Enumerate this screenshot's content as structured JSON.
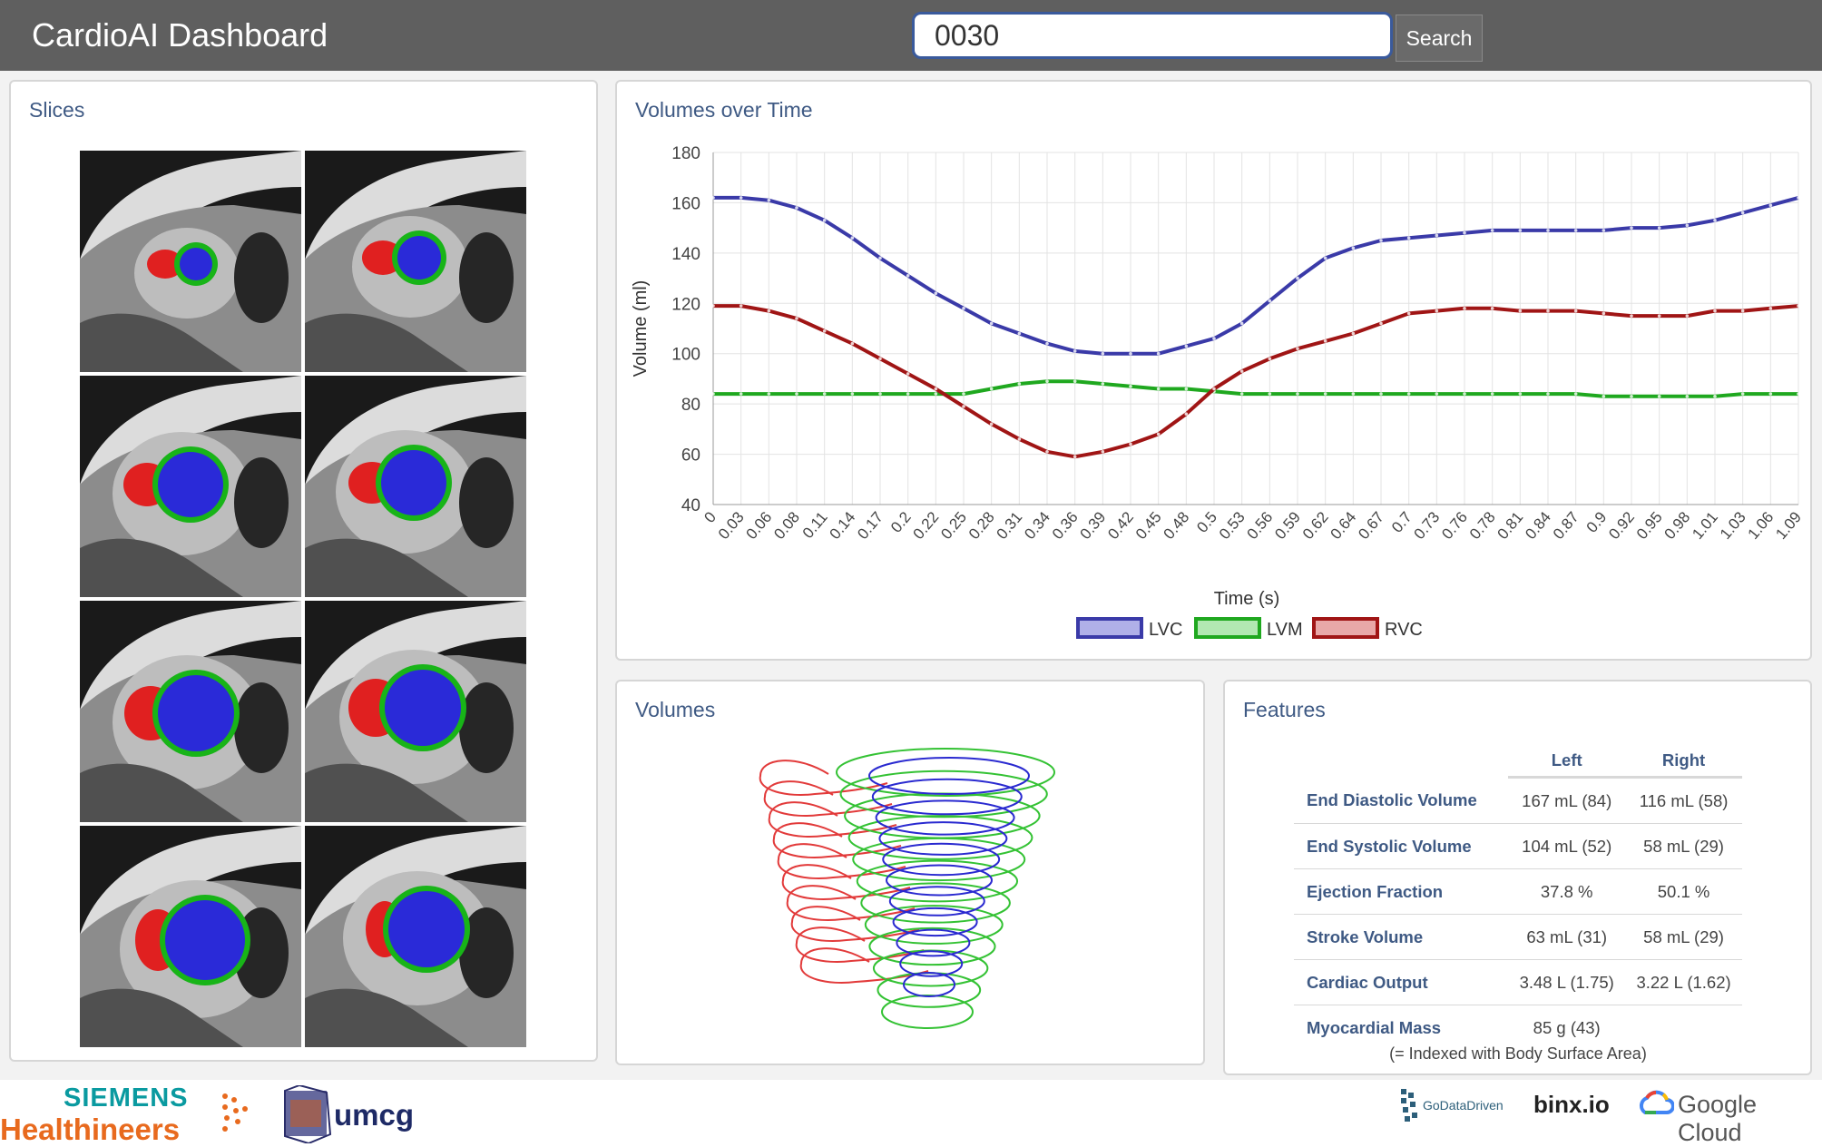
{
  "header": {
    "title": "CardioAI Dashboard",
    "search_value": "0030",
    "search_button": "Search"
  },
  "panels": {
    "slices_title": "Slices",
    "volumes_time_title": "Volumes over Time",
    "volumes_title": "Volumes",
    "features_title": "Features"
  },
  "colors": {
    "lvc": "#3a3aa8",
    "lvm": "#1fa81f",
    "rvc": "#a01515",
    "rvc_3d": "#e23a3a",
    "lvm_3d": "#34c234",
    "lvc_3d": "#2a2ad0",
    "title_blue": "#3f5a84"
  },
  "chart_data": {
    "type": "line",
    "xlabel": "Time (s)",
    "ylabel": "Volume (ml)",
    "ylim": [
      40,
      180
    ],
    "yticks": [
      40,
      60,
      80,
      100,
      120,
      140,
      160,
      180
    ],
    "grid": true,
    "legend_position": "bottom-center",
    "x": [
      0,
      0.03,
      0.06,
      0.08,
      0.11,
      0.14,
      0.17,
      0.2,
      0.22,
      0.25,
      0.28,
      0.31,
      0.34,
      0.36,
      0.39,
      0.42,
      0.45,
      0.48,
      0.5,
      0.53,
      0.56,
      0.59,
      0.62,
      0.64,
      0.67,
      0.7,
      0.73,
      0.76,
      0.78,
      0.81,
      0.84,
      0.87,
      0.9,
      0.92,
      0.95,
      0.98,
      1.01,
      1.03,
      1.06,
      1.09
    ],
    "series": [
      {
        "name": "LVC",
        "values": [
          162,
          162,
          161,
          158,
          153,
          146,
          138,
          131,
          124,
          118,
          112,
          108,
          104,
          101,
          100,
          100,
          100,
          103,
          106,
          112,
          121,
          130,
          138,
          142,
          145,
          146,
          147,
          148,
          149,
          149,
          149,
          149,
          149,
          150,
          150,
          151,
          153,
          156,
          159,
          162
        ]
      },
      {
        "name": "LVM",
        "values": [
          84,
          84,
          84,
          84,
          84,
          84,
          84,
          84,
          84,
          84,
          86,
          88,
          89,
          89,
          88,
          87,
          86,
          86,
          85,
          84,
          84,
          84,
          84,
          84,
          84,
          84,
          84,
          84,
          84,
          84,
          84,
          84,
          83,
          83,
          83,
          83,
          83,
          84,
          84,
          84
        ]
      },
      {
        "name": "RVC",
        "values": [
          119,
          119,
          117,
          114,
          109,
          104,
          98,
          92,
          86,
          79,
          72,
          66,
          61,
          59,
          61,
          64,
          68,
          76,
          86,
          93,
          98,
          102,
          105,
          108,
          112,
          116,
          117,
          118,
          118,
          117,
          117,
          117,
          116,
          115,
          115,
          115,
          117,
          117,
          118,
          119
        ]
      }
    ]
  },
  "features": {
    "col_left": "Left",
    "col_right": "Right",
    "rows": [
      {
        "label": "End Diastolic Volume",
        "left": "167 mL (84)",
        "right": "116 mL (58)"
      },
      {
        "label": "End Systolic Volume",
        "left": "104 mL (52)",
        "right": "58 mL (29)"
      },
      {
        "label": "Ejection Fraction",
        "left": "37.8 %",
        "right": "50.1 %"
      },
      {
        "label": "Stroke Volume",
        "left": "63 mL (31)",
        "right": "58 mL (29)"
      },
      {
        "label": "Cardiac Output",
        "left": "3.48 L (1.75)",
        "right": "3.22 L (1.62)"
      },
      {
        "label": "Myocardial Mass",
        "left": "85 g (43)",
        "right": ""
      }
    ],
    "note": "(= Indexed with Body Surface Area)"
  },
  "footer": {
    "siemens_top": "SIEMENS",
    "siemens_bottom": "Healthineers",
    "umcg": "umcg",
    "godatadriven": "GoDataDriven",
    "binx": "binx.io",
    "google_cloud": "Google Cloud"
  }
}
